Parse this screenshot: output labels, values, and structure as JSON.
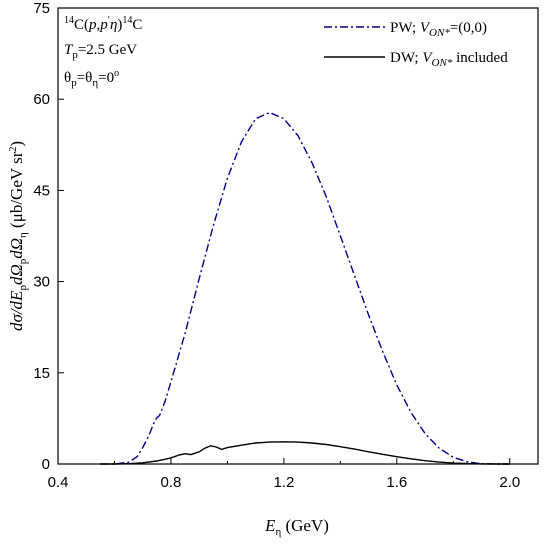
{
  "chart_data": {
    "type": "line",
    "annotations": [
      {
        "parts": [
          {
            "t": "14",
            "s": "sup"
          },
          {
            "t": "C("
          },
          {
            "t": "p",
            "s": "it"
          },
          {
            "t": ","
          },
          {
            "t": "p",
            "s": "it"
          },
          {
            "t": "′",
            "s": "sup"
          },
          {
            "t": "η",
            "s": "it"
          },
          {
            "t": ")"
          },
          {
            "t": "14",
            "s": "sup"
          },
          {
            "t": "C"
          }
        ]
      },
      {
        "parts": [
          {
            "t": "T",
            "s": "it"
          },
          {
            "t": "p",
            "s": "sub"
          },
          {
            "t": "=2.5 GeV"
          }
        ]
      },
      {
        "parts": [
          {
            "t": "θ"
          },
          {
            "t": "p",
            "s": "sub"
          },
          {
            "t": "=θ"
          },
          {
            "t": "η",
            "s": "sub"
          },
          {
            "t": "=0"
          },
          {
            "t": "o",
            "s": "sup"
          }
        ]
      }
    ],
    "xlabel_parts": [
      {
        "t": "E",
        "s": "it"
      },
      {
        "t": "η",
        "s": "sub"
      },
      {
        "t": " (GeV)"
      }
    ],
    "ylabel_parts": [
      {
        "t": "dσ/",
        "s": "it"
      },
      {
        "t": "dE",
        "s": "it"
      },
      {
        "t": "p",
        "s": "sub"
      },
      {
        "t": "dΩ",
        "s": "it"
      },
      {
        "t": "p",
        "s": "sub"
      },
      {
        "t": "dΩ",
        "s": "it"
      },
      {
        "t": "η",
        "s": "sub"
      },
      {
        "t": "  (μb/GeV sr"
      },
      {
        "t": "2",
        "s": "sup"
      },
      {
        "t": ")"
      }
    ],
    "xlim": [
      0.4,
      2.1
    ],
    "ylim": [
      0,
      75
    ],
    "xticks": [
      "0.4",
      "0.8",
      "1.2",
      "1.6",
      "2.0"
    ],
    "xtick_values": [
      0.4,
      0.8,
      1.2,
      1.6,
      2.0
    ],
    "yticks": [
      "0",
      "15",
      "30",
      "45",
      "60",
      "75"
    ],
    "ytick_values": [
      0,
      15,
      30,
      45,
      60,
      75
    ],
    "grid": false,
    "legend_position": "top-right",
    "series": [
      {
        "legend_parts": [
          {
            "t": "PW; "
          },
          {
            "t": "V",
            "s": "it"
          },
          {
            "t": "ON*",
            "s": "sub it"
          },
          {
            "t": "=(0,0)"
          }
        ],
        "color": "#00008b",
        "style": "dash-dot",
        "x": [
          0.55,
          0.6,
          0.65,
          0.68,
          0.7,
          0.72,
          0.74,
          0.75,
          0.76,
          0.78,
          0.8,
          0.85,
          0.9,
          0.95,
          1.0,
          1.05,
          1.1,
          1.15,
          1.2,
          1.25,
          1.3,
          1.35,
          1.4,
          1.45,
          1.5,
          1.55,
          1.6,
          1.65,
          1.7,
          1.75,
          1.8,
          1.85,
          1.9,
          1.95,
          2.0
        ],
        "y": [
          0,
          0,
          0.3,
          1.2,
          2.7,
          4.5,
          6.8,
          7.6,
          8.0,
          10.4,
          13.5,
          21.5,
          30.5,
          39.2,
          47.0,
          53.0,
          56.8,
          57.8,
          56.8,
          54.0,
          49.5,
          44.0,
          37.5,
          31.0,
          24.5,
          18.5,
          13.0,
          8.5,
          5.0,
          2.6,
          1.1,
          0.35,
          0.05,
          0,
          0
        ]
      },
      {
        "legend_parts": [
          {
            "t": "DW; "
          },
          {
            "t": "V",
            "s": "it"
          },
          {
            "t": "ON*",
            "s": "sub it"
          },
          {
            "t": " included"
          }
        ],
        "color": "#000000",
        "style": "solid",
        "x": [
          0.55,
          0.6,
          0.65,
          0.7,
          0.75,
          0.8,
          0.83,
          0.85,
          0.87,
          0.9,
          0.92,
          0.94,
          0.96,
          0.98,
          1.0,
          1.05,
          1.1,
          1.15,
          1.2,
          1.25,
          1.3,
          1.35,
          1.4,
          1.45,
          1.5,
          1.55,
          1.6,
          1.65,
          1.7,
          1.75,
          1.8,
          1.85,
          1.9,
          1.95,
          2.0
        ],
        "y": [
          0,
          0,
          0.05,
          0.2,
          0.5,
          1.0,
          1.5,
          1.7,
          1.55,
          2.0,
          2.6,
          3.0,
          2.8,
          2.4,
          2.7,
          3.1,
          3.45,
          3.6,
          3.65,
          3.6,
          3.45,
          3.2,
          2.85,
          2.45,
          2.0,
          1.6,
          1.2,
          0.85,
          0.55,
          0.32,
          0.15,
          0.06,
          0.02,
          0,
          0
        ]
      }
    ]
  }
}
